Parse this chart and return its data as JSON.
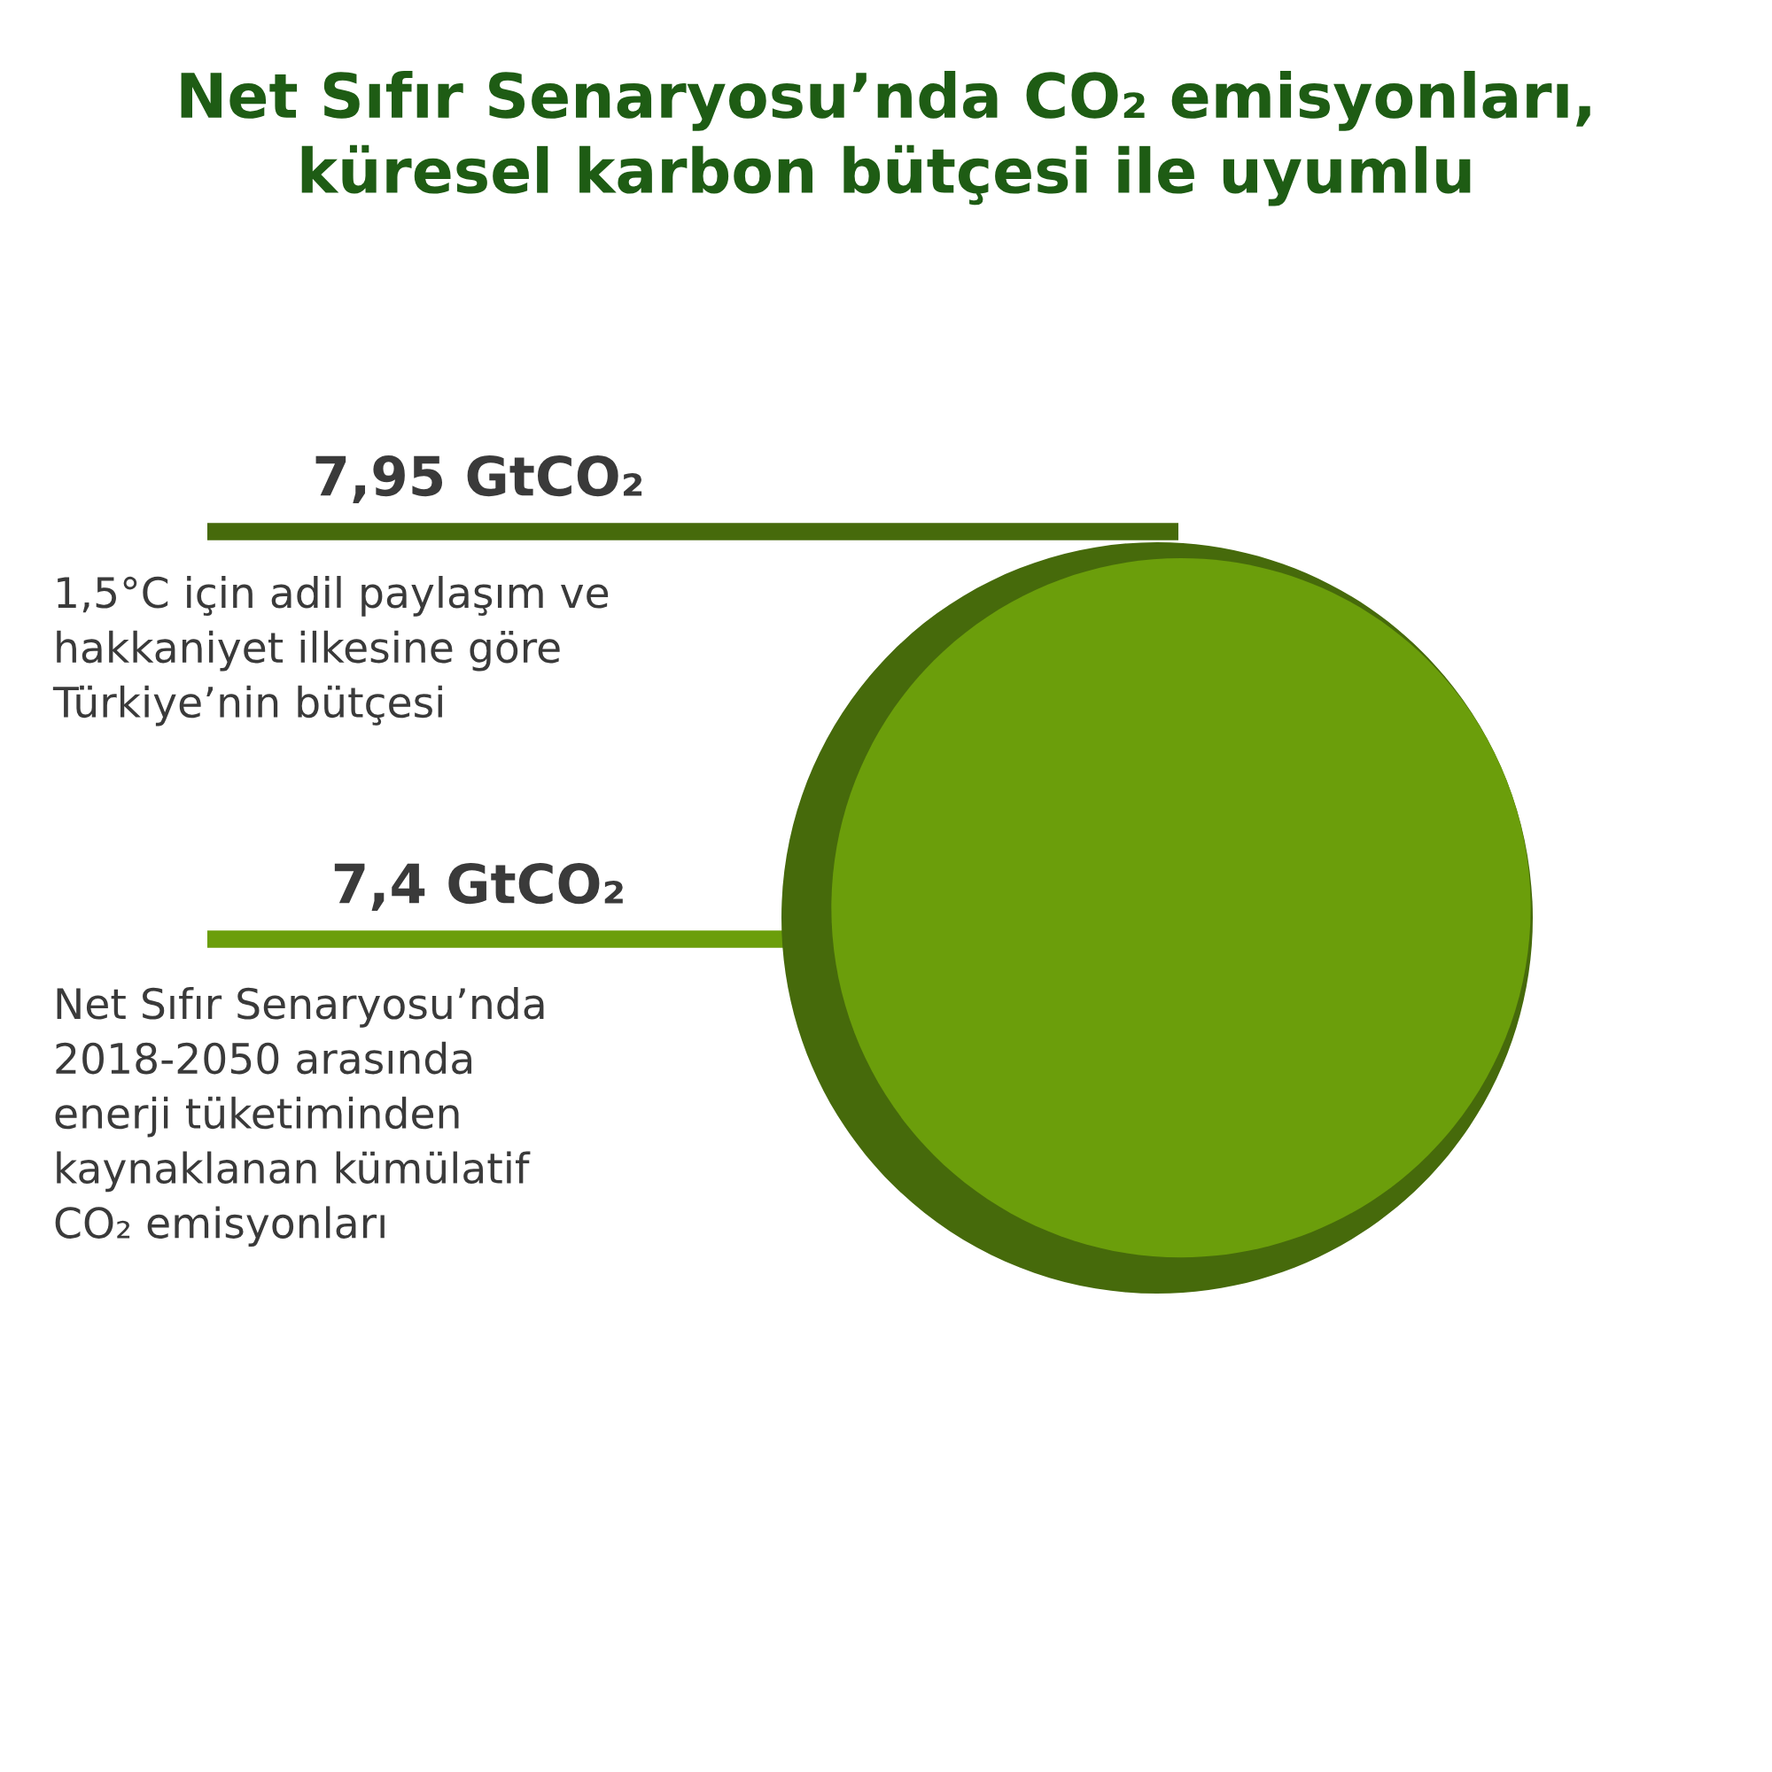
{
  "chart_data": {
    "type": "other",
    "title": "Net Sıfır Senaryosu’nda CO₂ emisyonları,\nküresel karbon bütçesi ile uyumlu",
    "categories": [
      "1,5°C için adil paylaşım ve\nhakkaniyet ilkesine göre\nTürkiye’nin bütçesi",
      "Net Sıfır Senaryosu’nda\n2018-2050 arasında\nenerji tüketiminden\nkaynaklanan kümülatif\nCO₂ emisyonları"
    ],
    "values": [
      7.95,
      7.4
    ],
    "value_labels": [
      "7,95 GtCO₂",
      "7,4 GtCO₂"
    ],
    "colors": [
      "#466a0b",
      "#6b9e0b"
    ]
  }
}
